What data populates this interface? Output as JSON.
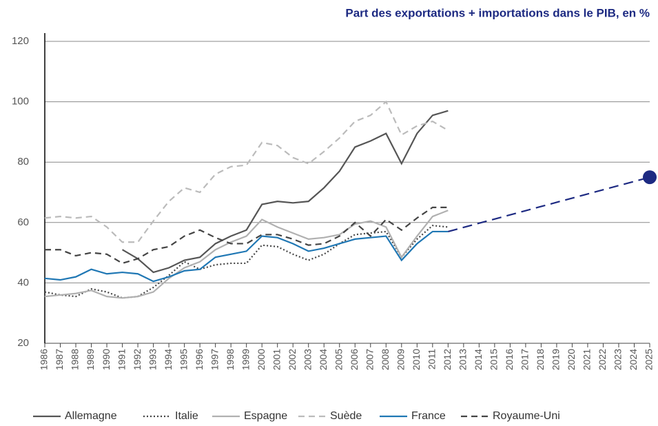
{
  "chart_data": {
    "type": "line",
    "title": "Part des exportations + importations dans le PIB, en %",
    "categories": [
      "1986",
      "1987",
      "1988",
      "1989",
      "1990",
      "1991",
      "1992",
      "1993",
      "1994",
      "1995",
      "1996",
      "1997",
      "1998",
      "1999",
      "2000",
      "2001",
      "2002",
      "2003",
      "2004",
      "2005",
      "2006",
      "2007",
      "2008",
      "2009",
      "2010",
      "2011",
      "2012",
      "2013",
      "2014",
      "2015",
      "2016",
      "2017",
      "2018",
      "2019",
      "2020",
      "2021",
      "2022",
      "2023",
      "2024",
      "2025"
    ],
    "ylim": [
      20,
      120
    ],
    "yticks": [
      20,
      40,
      60,
      80,
      100,
      120
    ],
    "grid": true,
    "series": [
      {
        "name": "Allemagne",
        "color": "#555555",
        "dash": "none",
        "values": [
          null,
          null,
          null,
          null,
          null,
          51,
          48,
          43.5,
          45,
          47.5,
          48.5,
          53,
          55.5,
          57.5,
          66,
          67,
          66.5,
          67,
          71.5,
          77,
          85,
          87,
          89.5,
          79.5,
          89.5,
          95.5,
          97,
          null,
          null,
          null,
          null,
          null,
          null,
          null,
          null,
          null,
          null,
          null,
          null,
          null
        ]
      },
      {
        "name": "Italie",
        "color": "#444444",
        "dash": "2 3",
        "values": [
          37,
          36,
          35.5,
          38,
          37,
          35,
          35.5,
          38.5,
          42.5,
          47,
          44.5,
          46,
          46.5,
          46.5,
          52.5,
          52,
          49.5,
          47.5,
          49.5,
          53,
          56,
          56.5,
          57,
          48.5,
          54.5,
          59,
          58.5,
          null,
          null,
          null,
          null,
          null,
          null,
          null,
          null,
          null,
          null,
          null,
          null,
          null
        ]
      },
      {
        "name": "Espagne",
        "color": "#b0b0b0",
        "dash": "none",
        "values": [
          35.5,
          36,
          36.5,
          37.5,
          35.5,
          35,
          35.5,
          37,
          41.5,
          45,
          47,
          51,
          53.5,
          55.5,
          61,
          58.5,
          56.5,
          54.5,
          55,
          56,
          59.5,
          60.5,
          58.5,
          48.5,
          55.5,
          62,
          64,
          null,
          null,
          null,
          null,
          null,
          null,
          null,
          null,
          null,
          null,
          null,
          null,
          null
        ]
      },
      {
        "name": "Suède",
        "color": "#bbbbbb",
        "dash": "9 6",
        "values": [
          61.5,
          62,
          61.5,
          62,
          58.5,
          53.5,
          53.5,
          60.5,
          67,
          71.5,
          70,
          76,
          78.5,
          79,
          86.5,
          85.5,
          81.5,
          79.5,
          83.5,
          88,
          93.5,
          95.5,
          100,
          89,
          92,
          93.5,
          90.5,
          null,
          null,
          null,
          null,
          null,
          null,
          null,
          null,
          null,
          null,
          null,
          null,
          null
        ]
      },
      {
        "name": "France",
        "color": "#1f77b4",
        "dash": "none",
        "values": [
          41.5,
          41,
          42,
          44.5,
          43,
          43.5,
          43,
          40.5,
          42,
          44,
          44.5,
          48.5,
          49.5,
          50.5,
          55.5,
          55,
          53,
          50.5,
          51.5,
          53,
          54.5,
          55,
          55.5,
          47.5,
          53,
          57,
          57,
          null,
          null,
          null,
          null,
          null,
          null,
          null,
          null,
          null,
          null,
          null,
          null,
          null
        ]
      },
      {
        "name": "Royaume-Uni",
        "color": "#444444",
        "dash": "9 6",
        "values": [
          51,
          51,
          49,
          50,
          49.5,
          46.5,
          48,
          51,
          52,
          55.5,
          57.5,
          55,
          53,
          53,
          56,
          56,
          54.5,
          52.5,
          53,
          55.5,
          60,
          55.5,
          61,
          57.5,
          61.5,
          65,
          65,
          null,
          null,
          null,
          null,
          null,
          null,
          null,
          null,
          null,
          null,
          null,
          null,
          null
        ]
      }
    ],
    "projection": {
      "color": "#1d2a82",
      "categories": [
        "2012",
        "2025"
      ],
      "values": [
        57,
        75
      ]
    }
  }
}
